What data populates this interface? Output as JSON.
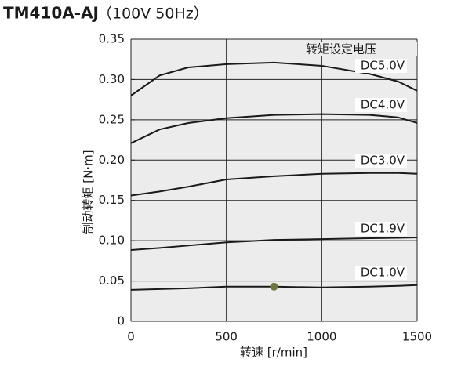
{
  "chart_data": {
    "type": "line",
    "title": "TM410A-AJ",
    "subtitle": "（100V 50Hz）",
    "x_label": "转速 [r/min]",
    "y_label": "制动转矩 [N·m]",
    "legend_title": "转矩设定电压",
    "x": [
      0,
      150,
      300,
      500,
      750,
      1000,
      1250,
      1400,
      1500
    ],
    "series": [
      {
        "name": "DC5.0V",
        "color": "#1a1a1a",
        "values": [
          0.28,
          0.305,
          0.315,
          0.319,
          0.321,
          0.317,
          0.307,
          0.2975,
          0.286
        ]
      },
      {
        "name": "DC4.0V",
        "color": "#1a1a1a",
        "values": [
          0.221,
          0.238,
          0.246,
          0.252,
          0.256,
          0.257,
          0.256,
          0.253,
          0.246
        ]
      },
      {
        "name": "DC3.0V",
        "color": "#1a1a1a",
        "values": [
          0.156,
          0.161,
          0.167,
          0.176,
          0.18,
          0.183,
          0.184,
          0.184,
          0.183
        ]
      },
      {
        "name": "DC1.9V",
        "color": "#1a1a1a",
        "values": [
          0.0885,
          0.091,
          0.094,
          0.098,
          0.101,
          0.102,
          0.103,
          0.1035,
          0.104
        ]
      },
      {
        "name": "DC1.0V",
        "color": "#1a1a1a",
        "values": [
          0.039,
          0.04,
          0.041,
          0.043,
          0.043,
          0.042,
          0.043,
          0.044,
          0.045
        ]
      }
    ],
    "marker": {
      "x": 750,
      "y": 0.043,
      "color": "#6b7a3a"
    },
    "xlim": [
      0,
      1500
    ],
    "ylim": [
      0,
      0.35
    ],
    "xticks": [
      0,
      500,
      1000,
      1500
    ],
    "yticks": [
      0,
      0.05,
      {
        "value": 0.1,
        "label": "0.10"
      },
      0.15,
      {
        "value": 0.2,
        "label": "0.20"
      },
      0.25,
      {
        "value": 0.3,
        "label": "0.30"
      },
      0.35
    ],
    "grid": true,
    "background": "#ececec"
  }
}
